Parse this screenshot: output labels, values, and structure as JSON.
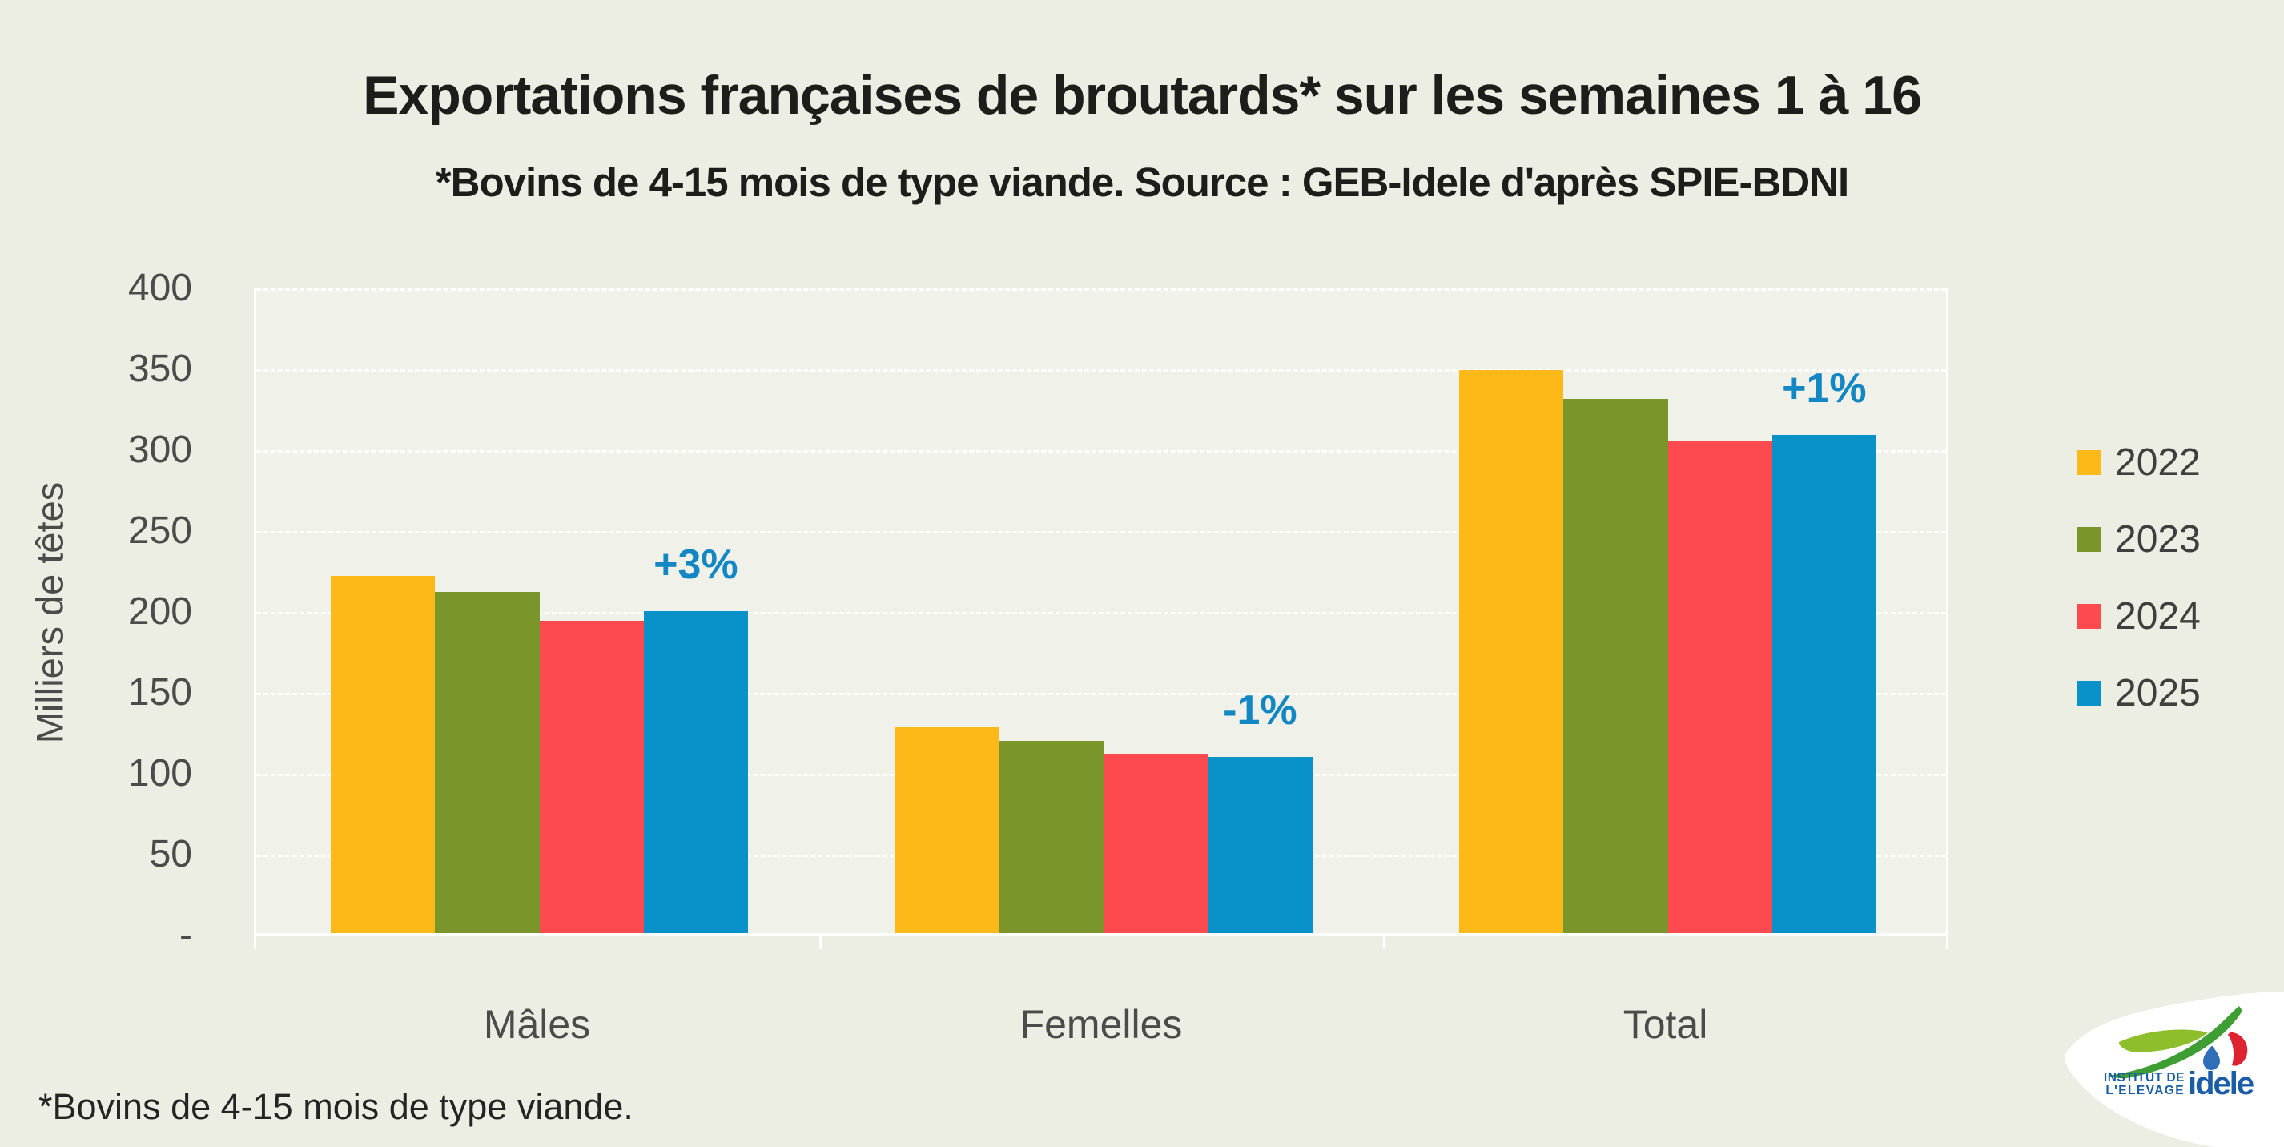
{
  "chart_data": {
    "type": "bar",
    "title": "Exportations françaises de broutards* sur les semaines 1 à 16",
    "subtitle": "*Bovins de 4-15 mois de type viande. Source : GEB-Idele d'après SPIE-BDNI",
    "ylabel": "Milliers de têtes",
    "ylim": [
      0,
      400
    ],
    "grid": "horizontal white dashed lines every 50",
    "legend_position": "right",
    "background_color": "#EDEEE3",
    "plot_background_color": "#F0F1E8",
    "yticks": [
      {
        "label": "400",
        "value": 400
      },
      {
        "label": "350",
        "value": 350
      },
      {
        "label": "300",
        "value": 300
      },
      {
        "label": "250",
        "value": 250
      },
      {
        "label": "200",
        "value": 200
      },
      {
        "label": "150",
        "value": 150
      },
      {
        "label": "100",
        "value": 100
      },
      {
        "label": "50",
        "value": 50
      },
      {
        "label": "-",
        "value": 0
      }
    ],
    "categories": [
      "Mâles",
      "Femelles",
      "Total"
    ],
    "series": [
      {
        "name": "2022",
        "color": "#FDB918",
        "values": [
          221,
          127,
          348
        ]
      },
      {
        "name": "2023",
        "color": "#7A962B",
        "values": [
          211,
          119,
          330
        ]
      },
      {
        "name": "2024",
        "color": "#FD4A4F",
        "values": [
          193,
          111,
          304
        ]
      },
      {
        "name": "2025",
        "color": "#0991C9",
        "values": [
          199,
          109,
          308
        ]
      }
    ],
    "annotations": [
      {
        "category": "Mâles",
        "series": "2025",
        "text": "+3%",
        "color": "#1287C4"
      },
      {
        "category": "Femelles",
        "series": "2025",
        "text": "-1%",
        "color": "#1287C4"
      },
      {
        "category": "Total",
        "series": "2025",
        "text": "+1%",
        "color": "#1287C4"
      }
    ]
  },
  "footnote": "*Bovins de 4-15 mois de type viande.",
  "logo": {
    "institute_line1": "INSTITUT DE",
    "institute_line2": "L'ELEVAGE",
    "brand": "idele"
  }
}
